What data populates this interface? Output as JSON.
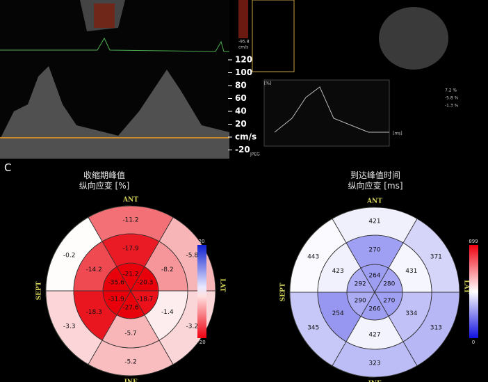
{
  "panel_label": "C",
  "doppler": {
    "scale_top": "-95.8",
    "scale_unit": "cm/s",
    "ticks": [
      "120",
      "100",
      "80",
      "60",
      "40",
      "20",
      "cm/s",
      "-20"
    ]
  },
  "strain_panel": {
    "y_unit": "[%]",
    "x_unit": "[ms]",
    "logo": "JPEG",
    "readouts": [
      "7.2 %",
      "-5.8 %",
      "-1.3 %"
    ]
  },
  "plots": [
    {
      "title": "收缩期峰值",
      "subtitle": "纵向应变 [%]",
      "labels": {
        "ant": "ANT",
        "sept": "SEPT",
        "lat": "LAT",
        "inf": "INF"
      },
      "colorbar": [
        20,
        -20
      ],
      "basal": [
        -11.2,
        -5.8,
        -3.2,
        -5.2,
        -3.3,
        -0.2
      ],
      "mid": [
        -17.9,
        -8.2,
        -1.4,
        -5.7,
        -18.3,
        -14.2
      ],
      "apical": [
        -21.2,
        -20.3,
        -18.7,
        -27.6,
        -31.9,
        -35.6
      ]
    },
    {
      "title": "到达峰值时间",
      "subtitle": "纵向应变 [ms]",
      "labels": {
        "ant": "ANT",
        "sept": "SEPT",
        "lat": "LAT",
        "inf": "INF"
      },
      "colorbar": [
        899,
        0
      ],
      "basal": [
        421,
        371,
        313,
        323,
        345,
        443
      ],
      "mid": [
        270,
        431,
        334,
        427,
        254,
        423
      ],
      "apical": [
        264,
        280,
        270,
        266,
        290,
        292
      ]
    }
  ]
}
